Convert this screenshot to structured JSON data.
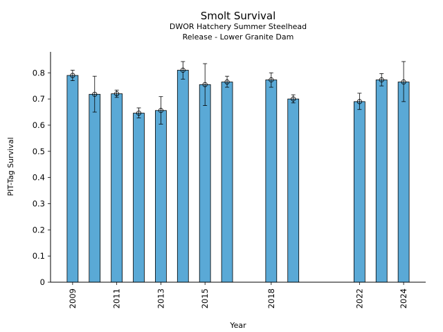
{
  "chart_data": {
    "type": "bar",
    "title": "Smolt Survival",
    "subtitle_lines": [
      "DWOR Hatchery Summer Steelhead",
      "Release - Lower Granite Dam"
    ],
    "xlabel": "Year",
    "ylabel": "PIT-Tag Survival",
    "xlim": [
      2008,
      2025
    ],
    "ylim": [
      0,
      0.88
    ],
    "x_ticks": [
      "2009",
      "2011",
      "2013",
      "2015",
      "2018",
      "2022",
      "2024"
    ],
    "y_ticks": [
      "0",
      "0.1",
      "0.2",
      "0.3",
      "0.4",
      "0.5",
      "0.6",
      "0.7",
      "0.8"
    ],
    "grid": false,
    "legend": "none",
    "bar_color": "#5aa9d6",
    "points": [
      {
        "year": 2009,
        "value": 0.79,
        "lower": 0.77,
        "upper": 0.81
      },
      {
        "year": 2010,
        "value": 0.718,
        "lower": 0.65,
        "upper": 0.787
      },
      {
        "year": 2011,
        "value": 0.72,
        "lower": 0.706,
        "upper": 0.734
      },
      {
        "year": 2012,
        "value": 0.646,
        "lower": 0.628,
        "upper": 0.666
      },
      {
        "year": 2013,
        "value": 0.656,
        "lower": 0.604,
        "upper": 0.709
      },
      {
        "year": 2014,
        "value": 0.81,
        "lower": 0.776,
        "upper": 0.843
      },
      {
        "year": 2015,
        "value": 0.755,
        "lower": 0.675,
        "upper": 0.835
      },
      {
        "year": 2016,
        "value": 0.765,
        "lower": 0.745,
        "upper": 0.787
      },
      {
        "year": 2018,
        "value": 0.773,
        "lower": 0.745,
        "upper": 0.8
      },
      {
        "year": 2019,
        "value": 0.7,
        "lower": 0.685,
        "upper": 0.716
      },
      {
        "year": 2022,
        "value": 0.69,
        "lower": 0.66,
        "upper": 0.722
      },
      {
        "year": 2023,
        "value": 0.773,
        "lower": 0.75,
        "upper": 0.797
      },
      {
        "year": 2024,
        "value": 0.765,
        "lower": 0.69,
        "upper": 0.843
      }
    ]
  }
}
